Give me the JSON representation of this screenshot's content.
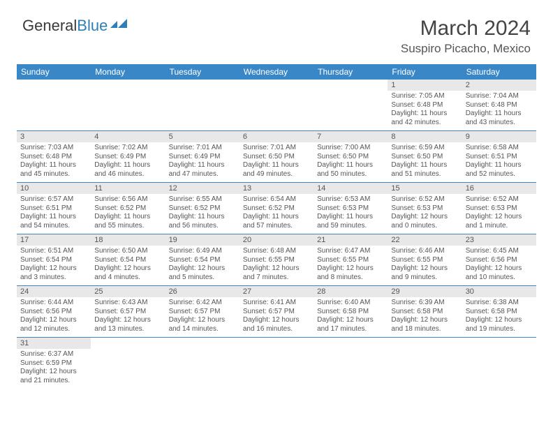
{
  "logo": {
    "general": "General",
    "blue": "Blue"
  },
  "title": "March 2024",
  "location": "Suspiro Picacho, Mexico",
  "colors": {
    "header_bg": "#3a87c8",
    "header_text": "#ffffff",
    "daynum_bg": "#e8e8e8",
    "cell_border": "#3a87c8",
    "body_text": "#555555",
    "logo_blue": "#2c7fb8"
  },
  "weekdays": [
    "Sunday",
    "Monday",
    "Tuesday",
    "Wednesday",
    "Thursday",
    "Friday",
    "Saturday"
  ],
  "weeks": [
    [
      null,
      null,
      null,
      null,
      null,
      {
        "n": "1",
        "sunrise": "7:05 AM",
        "sunset": "6:48 PM",
        "daylight": "11 hours and 42 minutes."
      },
      {
        "n": "2",
        "sunrise": "7:04 AM",
        "sunset": "6:48 PM",
        "daylight": "11 hours and 43 minutes."
      }
    ],
    [
      {
        "n": "3",
        "sunrise": "7:03 AM",
        "sunset": "6:48 PM",
        "daylight": "11 hours and 45 minutes."
      },
      {
        "n": "4",
        "sunrise": "7:02 AM",
        "sunset": "6:49 PM",
        "daylight": "11 hours and 46 minutes."
      },
      {
        "n": "5",
        "sunrise": "7:01 AM",
        "sunset": "6:49 PM",
        "daylight": "11 hours and 47 minutes."
      },
      {
        "n": "6",
        "sunrise": "7:01 AM",
        "sunset": "6:50 PM",
        "daylight": "11 hours and 49 minutes."
      },
      {
        "n": "7",
        "sunrise": "7:00 AM",
        "sunset": "6:50 PM",
        "daylight": "11 hours and 50 minutes."
      },
      {
        "n": "8",
        "sunrise": "6:59 AM",
        "sunset": "6:50 PM",
        "daylight": "11 hours and 51 minutes."
      },
      {
        "n": "9",
        "sunrise": "6:58 AM",
        "sunset": "6:51 PM",
        "daylight": "11 hours and 52 minutes."
      }
    ],
    [
      {
        "n": "10",
        "sunrise": "6:57 AM",
        "sunset": "6:51 PM",
        "daylight": "11 hours and 54 minutes."
      },
      {
        "n": "11",
        "sunrise": "6:56 AM",
        "sunset": "6:52 PM",
        "daylight": "11 hours and 55 minutes."
      },
      {
        "n": "12",
        "sunrise": "6:55 AM",
        "sunset": "6:52 PM",
        "daylight": "11 hours and 56 minutes."
      },
      {
        "n": "13",
        "sunrise": "6:54 AM",
        "sunset": "6:52 PM",
        "daylight": "11 hours and 57 minutes."
      },
      {
        "n": "14",
        "sunrise": "6:53 AM",
        "sunset": "6:53 PM",
        "daylight": "11 hours and 59 minutes."
      },
      {
        "n": "15",
        "sunrise": "6:52 AM",
        "sunset": "6:53 PM",
        "daylight": "12 hours and 0 minutes."
      },
      {
        "n": "16",
        "sunrise": "6:52 AM",
        "sunset": "6:53 PM",
        "daylight": "12 hours and 1 minute."
      }
    ],
    [
      {
        "n": "17",
        "sunrise": "6:51 AM",
        "sunset": "6:54 PM",
        "daylight": "12 hours and 3 minutes."
      },
      {
        "n": "18",
        "sunrise": "6:50 AM",
        "sunset": "6:54 PM",
        "daylight": "12 hours and 4 minutes."
      },
      {
        "n": "19",
        "sunrise": "6:49 AM",
        "sunset": "6:54 PM",
        "daylight": "12 hours and 5 minutes."
      },
      {
        "n": "20",
        "sunrise": "6:48 AM",
        "sunset": "6:55 PM",
        "daylight": "12 hours and 7 minutes."
      },
      {
        "n": "21",
        "sunrise": "6:47 AM",
        "sunset": "6:55 PM",
        "daylight": "12 hours and 8 minutes."
      },
      {
        "n": "22",
        "sunrise": "6:46 AM",
        "sunset": "6:55 PM",
        "daylight": "12 hours and 9 minutes."
      },
      {
        "n": "23",
        "sunrise": "6:45 AM",
        "sunset": "6:56 PM",
        "daylight": "12 hours and 10 minutes."
      }
    ],
    [
      {
        "n": "24",
        "sunrise": "6:44 AM",
        "sunset": "6:56 PM",
        "daylight": "12 hours and 12 minutes."
      },
      {
        "n": "25",
        "sunrise": "6:43 AM",
        "sunset": "6:57 PM",
        "daylight": "12 hours and 13 minutes."
      },
      {
        "n": "26",
        "sunrise": "6:42 AM",
        "sunset": "6:57 PM",
        "daylight": "12 hours and 14 minutes."
      },
      {
        "n": "27",
        "sunrise": "6:41 AM",
        "sunset": "6:57 PM",
        "daylight": "12 hours and 16 minutes."
      },
      {
        "n": "28",
        "sunrise": "6:40 AM",
        "sunset": "6:58 PM",
        "daylight": "12 hours and 17 minutes."
      },
      {
        "n": "29",
        "sunrise": "6:39 AM",
        "sunset": "6:58 PM",
        "daylight": "12 hours and 18 minutes."
      },
      {
        "n": "30",
        "sunrise": "6:38 AM",
        "sunset": "6:58 PM",
        "daylight": "12 hours and 19 minutes."
      }
    ],
    [
      {
        "n": "31",
        "sunrise": "6:37 AM",
        "sunset": "6:59 PM",
        "daylight": "12 hours and 21 minutes."
      },
      null,
      null,
      null,
      null,
      null,
      null
    ]
  ],
  "labels": {
    "sunrise": "Sunrise: ",
    "sunset": "Sunset: ",
    "daylight": "Daylight: "
  }
}
